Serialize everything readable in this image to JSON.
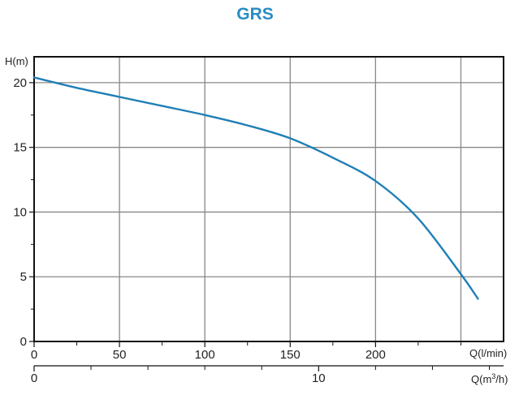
{
  "chart_data": {
    "type": "line",
    "title": "GRS",
    "ylabel": "H(m)",
    "xlabel": "Q(l/min)",
    "x2label": "Q(m³/h)",
    "xlim": [
      0,
      275
    ],
    "ylim": [
      0,
      22
    ],
    "yticks": [
      0,
      5,
      10,
      15,
      20
    ],
    "yticks_minor": [
      2.5,
      7.5,
      12.5,
      17.5
    ],
    "xticks": [
      0,
      50,
      100,
      150,
      200
    ],
    "xticks_label_text": [
      "0",
      "50",
      "100",
      "150",
      "200"
    ],
    "xticks_minor": [
      25,
      75,
      125,
      175,
      225,
      250
    ],
    "x2lim": [
      0,
      16.5
    ],
    "x2ticks": [
      0,
      10
    ],
    "x2ticks_minor": [
      2,
      4,
      6,
      8,
      12,
      14,
      16
    ],
    "grid": true,
    "series": [
      {
        "color": "#1f7fb6",
        "x": [
          0,
          25,
          50,
          75,
          100,
          125,
          150,
          175,
          200,
          225,
          250,
          260
        ],
        "y": [
          20.4,
          19.6,
          18.9,
          18.2,
          17.5,
          16.7,
          15.7,
          14.2,
          12.4,
          9.5,
          5.2,
          3.3
        ]
      }
    ],
    "colors": {
      "title": "#2a8cc4",
      "curve": "#1f7fb6",
      "grid": "#888888",
      "axis": "#111111"
    }
  }
}
